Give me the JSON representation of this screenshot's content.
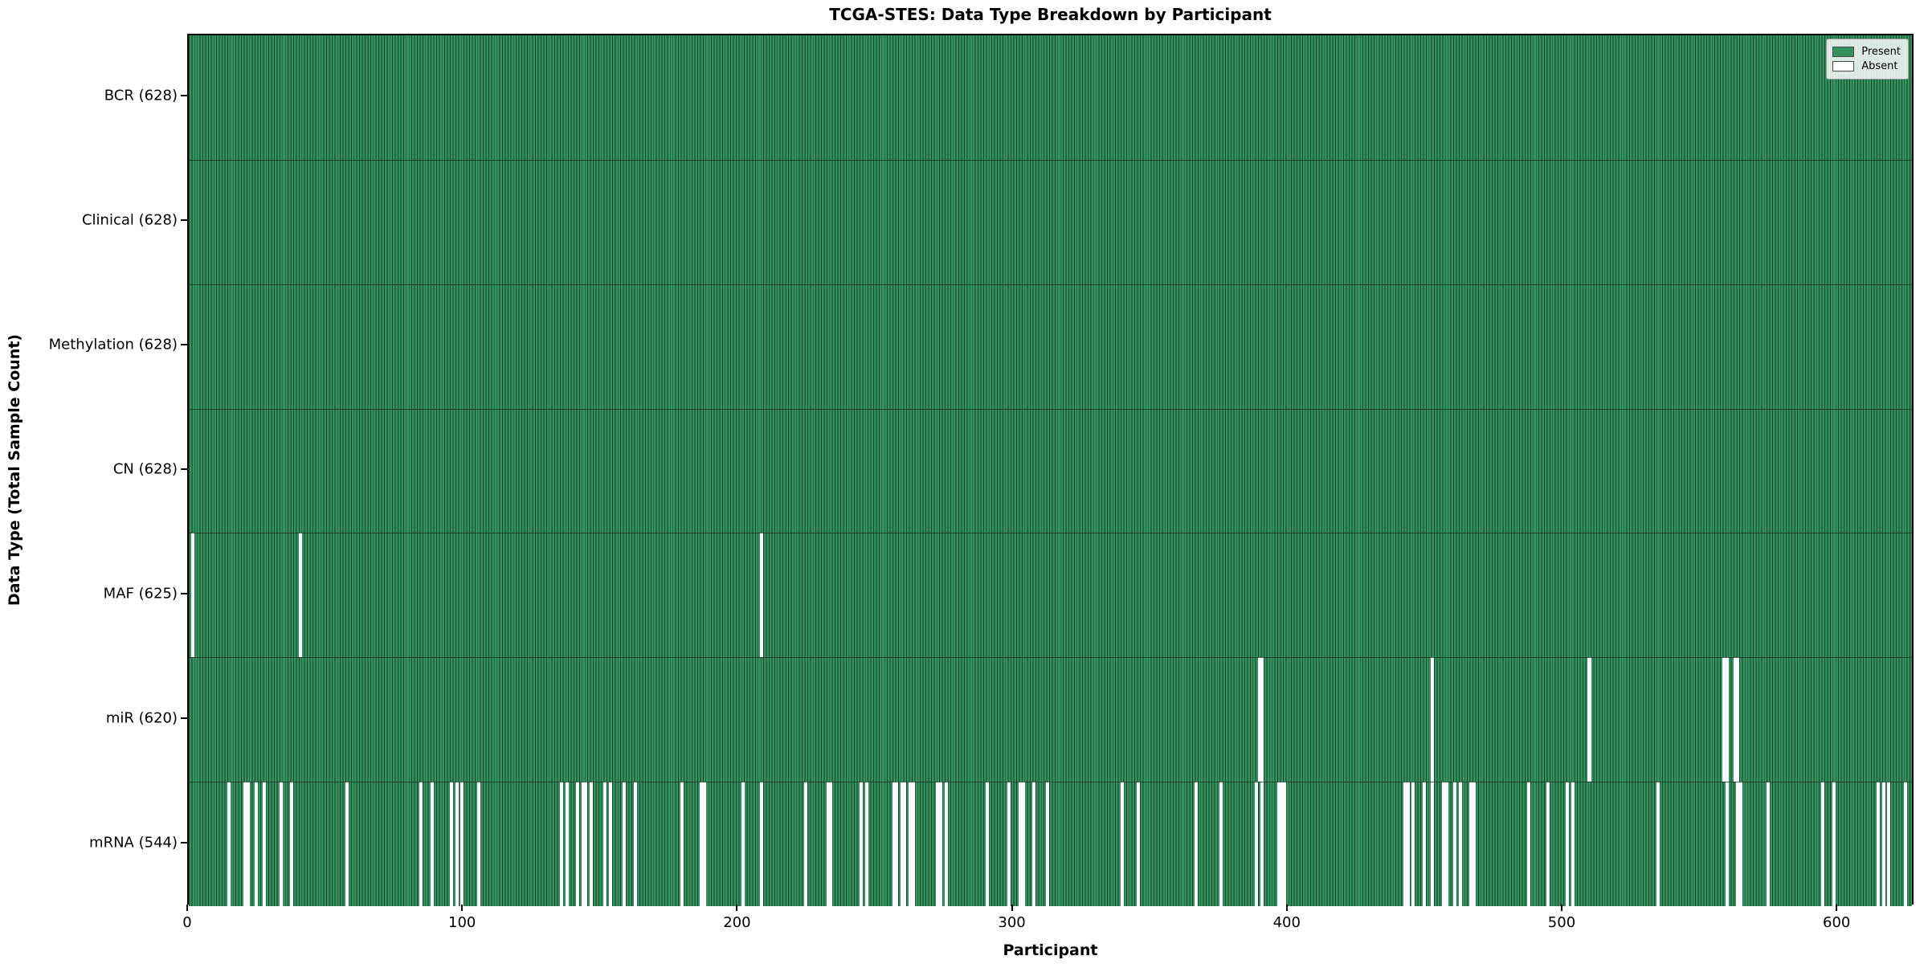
{
  "title": "TCGA-STES: Data Type Breakdown by Participant",
  "chart_data": {
    "type": "heatmap",
    "title": "TCGA-STES: Data Type Breakdown by Participant",
    "xlabel": "Participant",
    "ylabel": "Data Type (Total Sample Count)",
    "n_participants": 628,
    "xlim": [
      0,
      628
    ],
    "x_ticks": [
      0,
      100,
      200,
      300,
      400,
      500,
      600
    ],
    "grid": false,
    "legend": {
      "position": "upper right",
      "present_label": "Present",
      "absent_label": "Absent"
    },
    "colors": {
      "present": "#35915f",
      "present_edge": "#14462a",
      "absent": "#fbfbfb",
      "frame": "#000000"
    },
    "rows": [
      {
        "label": "BCR",
        "total": 628,
        "tick_label": "BCR (628)",
        "absent_participants": []
      },
      {
        "label": "Clinical",
        "total": 628,
        "tick_label": "Clinical (628)",
        "absent_participants": []
      },
      {
        "label": "Methylation",
        "total": 628,
        "tick_label": "Methylation (628)",
        "absent_participants": []
      },
      {
        "label": "CN",
        "total": 628,
        "tick_label": "CN (628)",
        "absent_participants": []
      },
      {
        "label": "MAF",
        "total": 625,
        "tick_label": "MAF (625)",
        "absent_participants": [
          1,
          40,
          208
        ]
      },
      {
        "label": "miR",
        "total": 620,
        "tick_label": "miR (620)",
        "absent_participants": [
          389,
          390,
          452,
          509,
          558,
          559,
          562,
          563
        ]
      },
      {
        "label": "mRNA",
        "total": 544,
        "tick_label": "mRNA (544)",
        "absent_participants": [
          14,
          20,
          21,
          24,
          27,
          33,
          37,
          57,
          84,
          88,
          95,
          97,
          99,
          105,
          135,
          137,
          141,
          143,
          144,
          146,
          151,
          153,
          158,
          162,
          179,
          186,
          187,
          201,
          208,
          224,
          232,
          233,
          244,
          246,
          256,
          257,
          259,
          260,
          262,
          263,
          272,
          273,
          275,
          290,
          298,
          302,
          303,
          307,
          312,
          339,
          345,
          366,
          375,
          388,
          390,
          396,
          397,
          398,
          442,
          443,
          445,
          449,
          452,
          456,
          457,
          460,
          462,
          466,
          467,
          487,
          494,
          501,
          503,
          534,
          559,
          563,
          564,
          574,
          594,
          598,
          614,
          616,
          618,
          624
        ]
      }
    ]
  }
}
